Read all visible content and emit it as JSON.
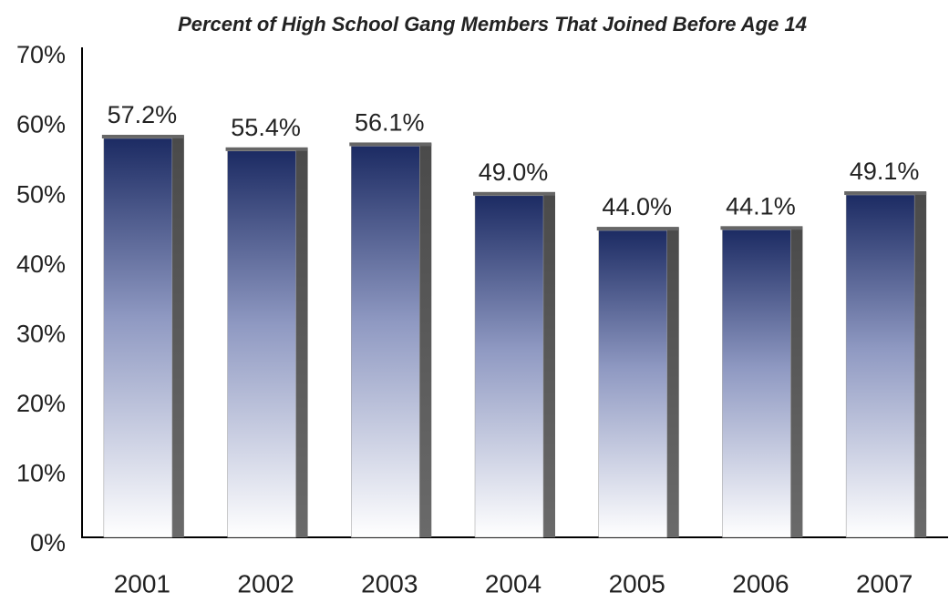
{
  "chart_data": {
    "type": "bar",
    "title": "Percent of High School Gang Members That Joined Before Age 14",
    "categories": [
      "2001",
      "2002",
      "2003",
      "2004",
      "2005",
      "2006",
      "2007"
    ],
    "values": [
      57.2,
      55.4,
      56.1,
      49.0,
      44.0,
      44.1,
      49.1
    ],
    "value_labels": [
      "57.2%",
      "55.4%",
      "56.1%",
      "49.0%",
      "44.0%",
      "44.1%",
      "49.1%"
    ],
    "color": "#1c2b63",
    "ylim": [
      0,
      70
    ],
    "yticks": [
      {
        "value": 0,
        "label": "0%"
      },
      {
        "value": 10,
        "label": "10%"
      },
      {
        "value": 20,
        "label": "20%"
      },
      {
        "value": 30,
        "label": "30%"
      },
      {
        "value": 40,
        "label": "40%"
      },
      {
        "value": 50,
        "label": "50%"
      },
      {
        "value": 60,
        "label": "60%"
      },
      {
        "value": 70,
        "label": "70%"
      }
    ],
    "grid": false
  }
}
